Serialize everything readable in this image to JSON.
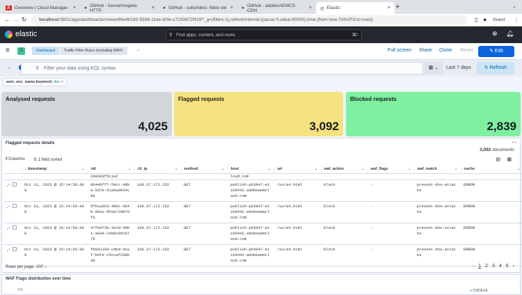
{
  "browser": {
    "tabs": [
      {
        "label": "Overview | Cloud Manager",
        "icon": "adobe-icon"
      },
      {
        "label": "GitHub - tsenart/vegeta: HTTP",
        "icon": "github-icon"
      },
      {
        "label": "GitHub - sullo/nikto: Nikto we",
        "icon": "github-icon"
      },
      {
        "label": "GitHub - adobe/AEMCS-CDN",
        "icon": "github-icon"
      },
      {
        "label": "Elastic",
        "icon": "elastic-icon",
        "active": true
      }
    ],
    "url_host": "localhost",
    "url_rest": ":5601/app/dashboards#/view/69e4b160-5938-11ee-b0fe-c7230d72f419?_g=(filters:!(),refreshInterval:(pause:!t,value:60000),time:(from:now-7d%2Fd,to:now))",
    "profile": "Guest"
  },
  "header": {
    "logo": "elastic",
    "search_placeholder": "Find apps, content, and more.",
    "search_shortcut": "⌘/"
  },
  "breadcrumbs": {
    "space": "D",
    "items": [
      "Dashboard",
      "Traffic Filter Rules (including WAF)"
    ]
  },
  "actions": {
    "full_screen": "Full screen",
    "share": "Share",
    "clone": "Clone",
    "reset": "Reset",
    "edit": "Edit"
  },
  "query": {
    "placeholder": "Filter your data using KQL syntax",
    "time": "Last 7 days",
    "refresh": "Refresh"
  },
  "filter_pill": {
    "field": "aem_env_name.keyword:",
    "value": "dev"
  },
  "metrics": [
    {
      "title": "Analysed requests",
      "value": "4,025",
      "color": "#d3d6da"
    },
    {
      "title": "Flagged requests",
      "value": "3,092",
      "color": "#f6e27f"
    },
    {
      "title": "Blocked requests",
      "value": "2,839",
      "color": "#7ef0a0"
    }
  ],
  "details": {
    "title": "Flagged requests details",
    "documents": "3,092",
    "documents_label": "documents",
    "columns_label": "Columns",
    "sorted_label": "1 field sorted",
    "headers": [
      "timestamp",
      "rid",
      "cli_ip",
      "method",
      "host",
      "url",
      "waf_action",
      "waf_flags",
      "waf_match",
      "cache"
    ],
    "partial_row": {
      "rid": "2083d3f5c1e2",
      "host": "loud.com"
    },
    "rows": [
      [
        "Oct 31, 2023 @ 15:14:58.000",
        "0b446ff7-54cc-48ba-937e-81a6a9034c8a",
        "108.37.172.152",
        "GET",
        "publish-p63947-e1169442.adobeaemcloud.com",
        "/us/en.html",
        "block",
        "-",
        "prevent-dos-attacks",
        "ERROR"
      ],
      [
        "Oct 31, 2023 @ 15:14:58.000",
        "5fb1adc6-400c-454b-98a1-8fee72d879fa",
        "108.37.172.152",
        "GET",
        "publish-p63947-e1169442.adobeaemcloud.com",
        "/us/en.html",
        "block",
        "-",
        "prevent-dos-attacks",
        "ERROR"
      ],
      [
        "Oct 31, 2023 @ 15:14:58.000",
        "47fe073b-3e2d-4bb1-a0a4-ceb8c9d18775",
        "108.37.172.152",
        "GET",
        "publish-p63947-e1169442.adobeaemcloud.com",
        "/us/en.html",
        "block",
        "-",
        "prevent-dos-attacks",
        "ERROR"
      ],
      [
        "Oct 31, 2023 @ 15:14:58.000",
        "fb841159-cdbd-4caf-b4fe-c5ccaf258b38",
        "108.37.172.152",
        "GET",
        "publish-p63947-e1169442.adobeaemcloud.com",
        "/us/en.html",
        "block",
        "-",
        "prevent-dos-attacks",
        "ERROR"
      ]
    ],
    "rows_per_page": "Rows per page: 100",
    "pages": [
      "1",
      "2",
      "3",
      "4",
      "5"
    ]
  },
  "bottom": {
    "title": "WAF Flags distribution over time",
    "y_tick": "250",
    "legend": "CMDEXE"
  }
}
